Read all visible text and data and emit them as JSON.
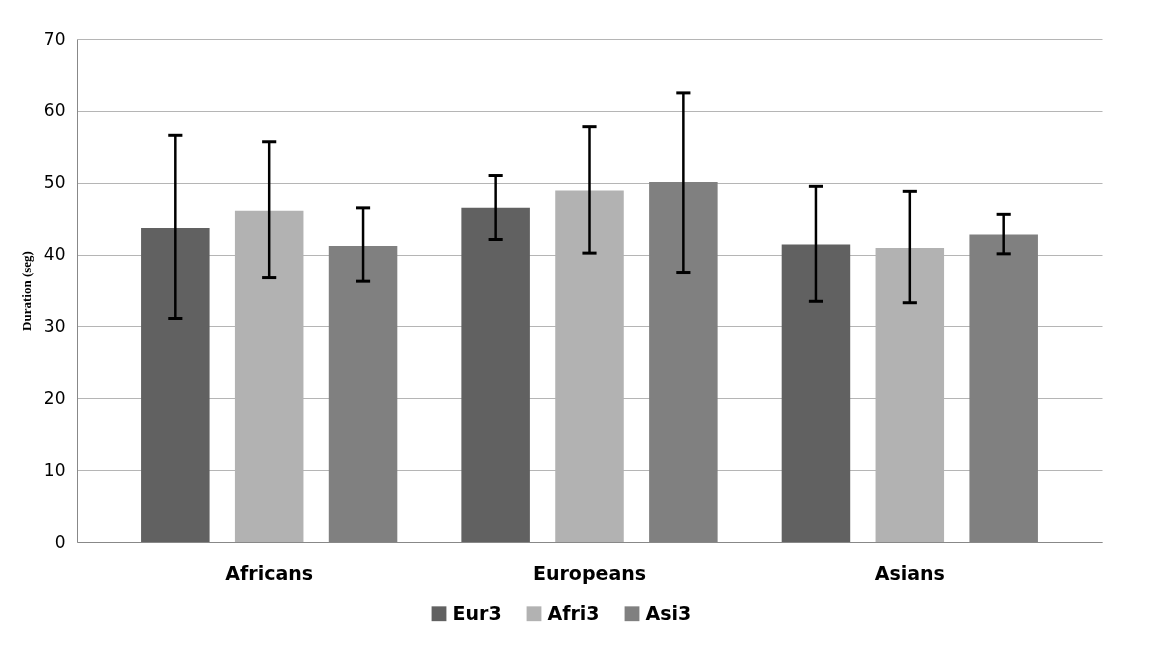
{
  "chart_data": {
    "type": "bar",
    "ylabel": "Duration (seg)",
    "categories": [
      "Africans",
      "Europeans",
      "Asians"
    ],
    "series": [
      {
        "name": "Eur3",
        "color": "#616161",
        "values": [
          43.7,
          46.5,
          41.4
        ],
        "errors": [
          [
            31.1,
            56.6
          ],
          [
            42.1,
            51.0
          ],
          [
            33.5,
            49.5
          ]
        ]
      },
      {
        "name": "Afri3",
        "color": "#b2b2b2",
        "values": [
          46.1,
          48.9,
          40.9
        ],
        "errors": [
          [
            36.8,
            55.7
          ],
          [
            40.2,
            57.8
          ],
          [
            33.3,
            48.8
          ]
        ]
      },
      {
        "name": "Asi3",
        "color": "#808080",
        "values": [
          41.2,
          50.1,
          42.8
        ],
        "errors": [
          [
            36.3,
            46.5
          ],
          [
            37.5,
            62.5
          ],
          [
            40.1,
            45.6
          ]
        ]
      }
    ],
    "ylim": [
      0,
      70
    ],
    "yticks": [
      0,
      10,
      20,
      30,
      40,
      50,
      60,
      70
    ],
    "grid": "y",
    "legend": "bottom"
  }
}
